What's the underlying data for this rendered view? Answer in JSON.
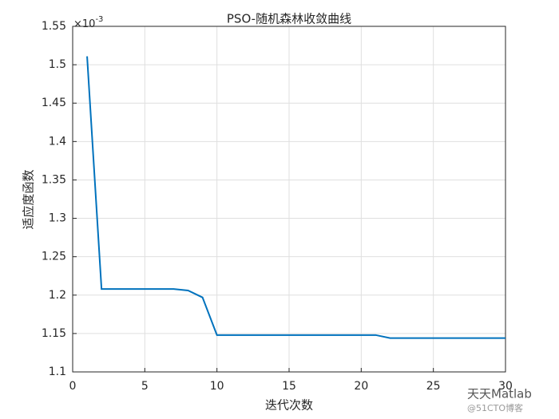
{
  "chart_data": {
    "type": "line",
    "title": "PSO-随机森林收敛曲线",
    "x_label": "迭代次数",
    "y_label": "适应度函数",
    "y_multiplier": "×10",
    "y_multiplier_exponent": "-3",
    "x": [
      1,
      2,
      3,
      4,
      5,
      6,
      7,
      8,
      9,
      10,
      11,
      12,
      13,
      14,
      15,
      16,
      17,
      18,
      19,
      20,
      21,
      22,
      23,
      24,
      25,
      26,
      27,
      28,
      29,
      30
    ],
    "series": [
      {
        "color": "#0072bd",
        "values": [
          1.511,
          1.208,
          1.208,
          1.208,
          1.208,
          1.208,
          1.208,
          1.206,
          1.197,
          1.148,
          1.148,
          1.148,
          1.148,
          1.148,
          1.148,
          1.148,
          1.148,
          1.148,
          1.148,
          1.148,
          1.148,
          1.144,
          1.144,
          1.144,
          1.144,
          1.144,
          1.144,
          1.144,
          1.144,
          1.144
        ]
      }
    ],
    "xlim": [
      0,
      30
    ],
    "xticks": [
      0,
      5,
      10,
      15,
      20,
      25,
      30
    ],
    "ylim": [
      1.1,
      1.55
    ],
    "yticks": [
      1.1,
      1.15,
      1.2,
      1.25,
      1.3,
      1.35,
      1.4,
      1.45,
      1.5,
      1.55
    ],
    "grid": true,
    "watermark": "天天Matlab",
    "watermark_sub": "@51CTO博客"
  }
}
